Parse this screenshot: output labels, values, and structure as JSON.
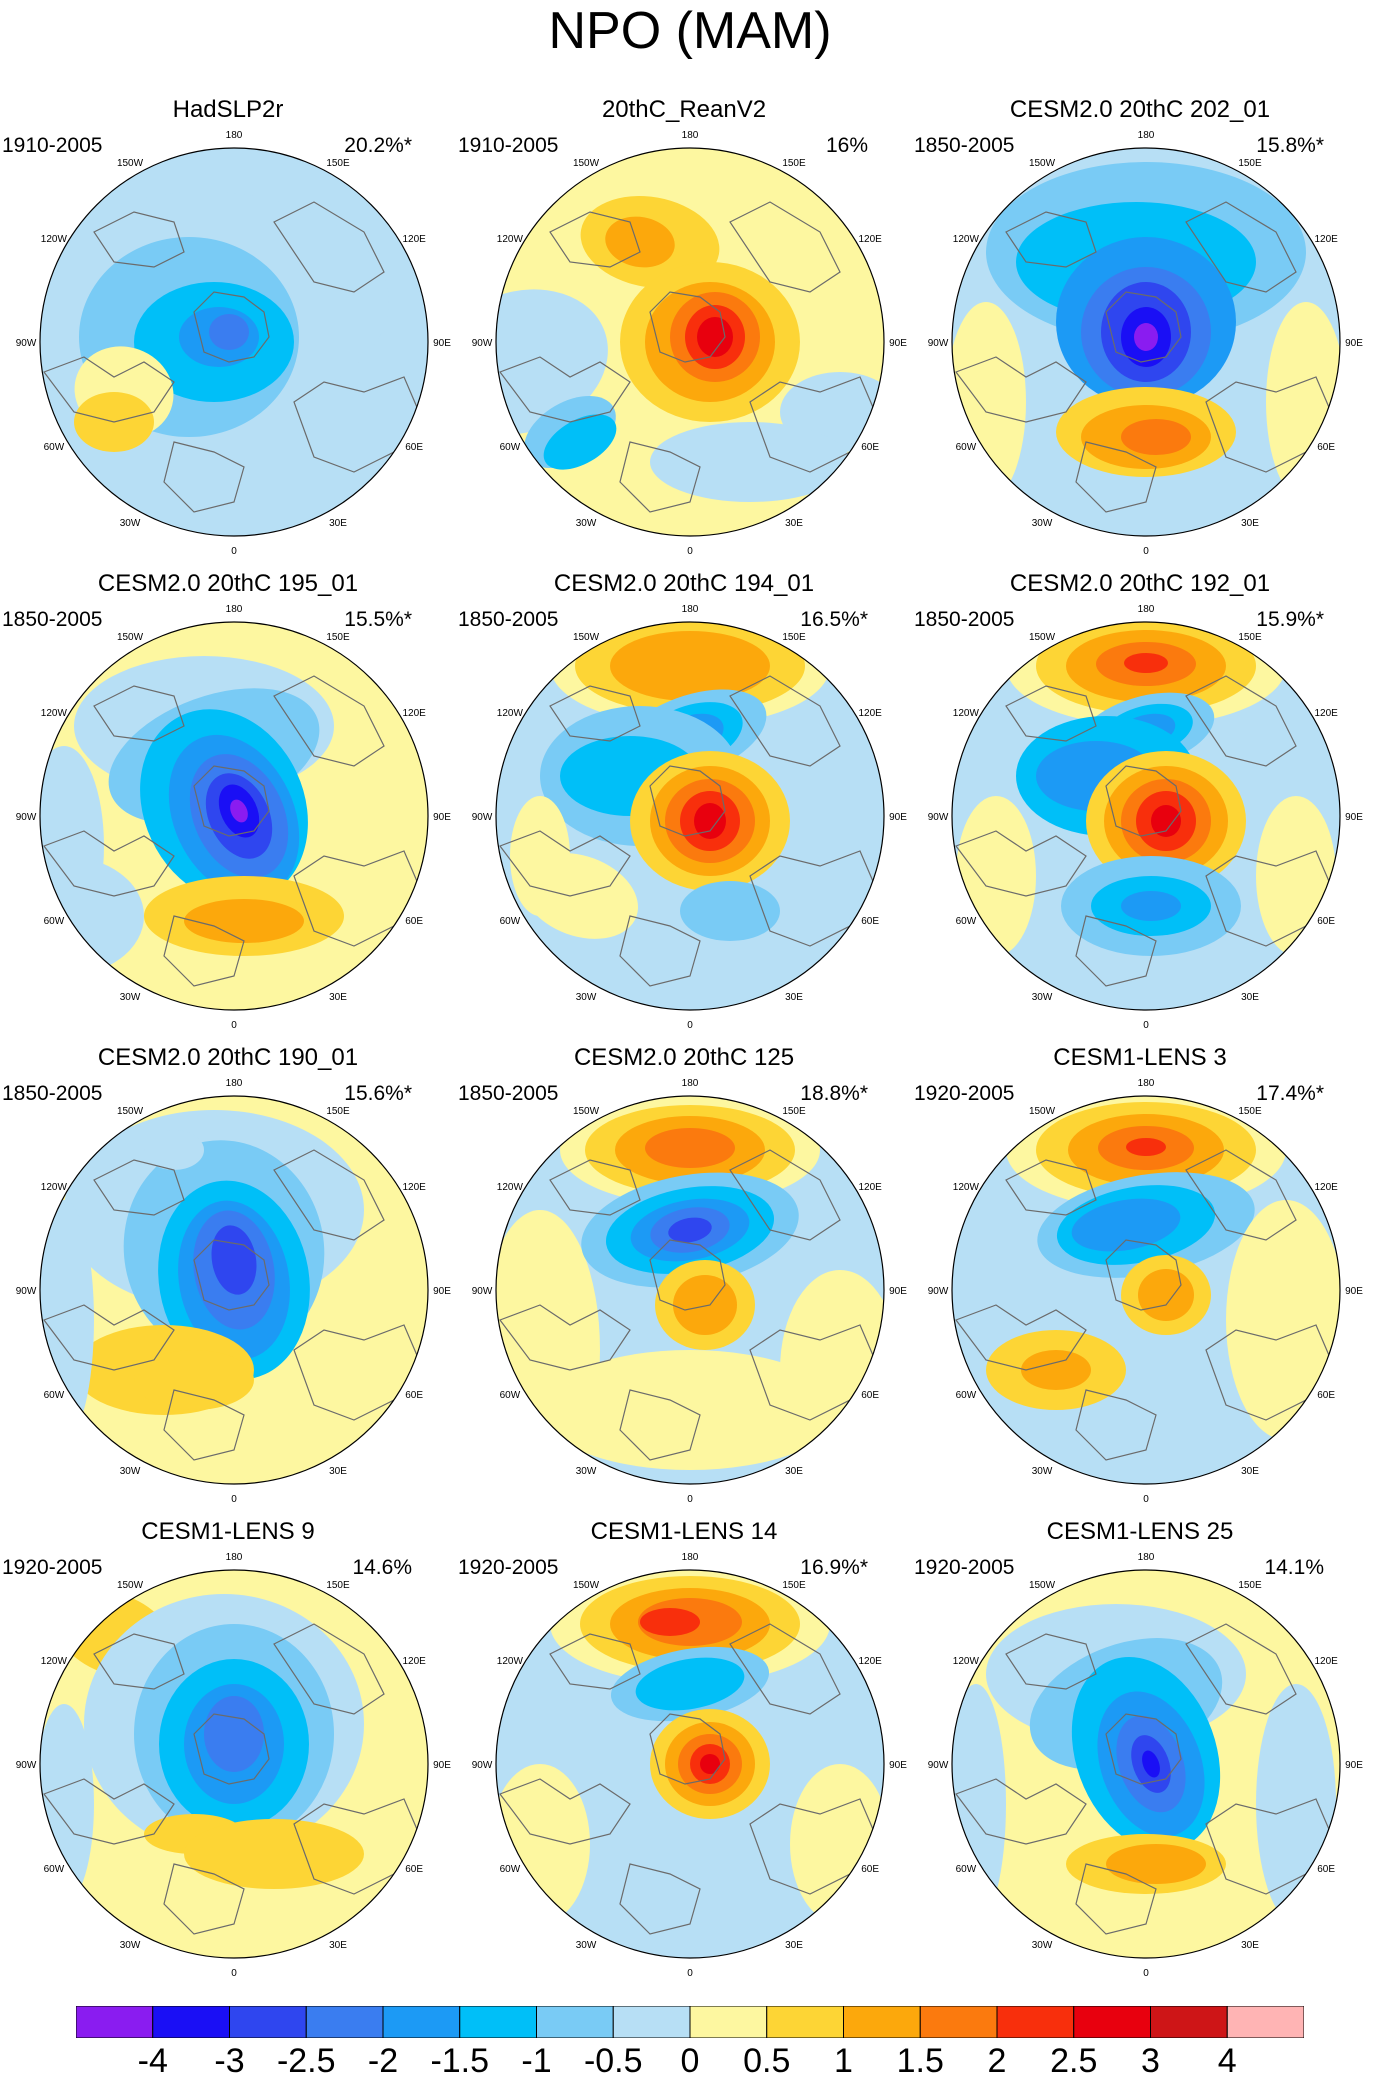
{
  "title": "NPO (MAM)",
  "map_labels": {
    "lon_labels": [
      "180",
      "150E",
      "120E",
      "90E",
      "60E",
      "30E",
      "0",
      "30W",
      "60W",
      "90W",
      "120W",
      "150W"
    ]
  },
  "panels": [
    {
      "title": "HadSLP2r",
      "period": "1910-2005",
      "variance": "20.2%*"
    },
    {
      "title": "20thC_ReanV2",
      "period": "1910-2005",
      "variance": "16%"
    },
    {
      "title": "CESM2.0 20thC 202_01",
      "period": "1850-2005",
      "variance": "15.8%*"
    },
    {
      "title": "CESM2.0 20thC 195_01",
      "period": "1850-2005",
      "variance": "15.5%*"
    },
    {
      "title": "CESM2.0 20thC 194_01",
      "period": "1850-2005",
      "variance": "16.5%*"
    },
    {
      "title": "CESM2.0 20thC 192_01",
      "period": "1850-2005",
      "variance": "15.9%*"
    },
    {
      "title": "CESM2.0 20thC 190_01",
      "period": "1850-2005",
      "variance": "15.6%*"
    },
    {
      "title": "CESM2.0 20thC 125",
      "period": "1850-2005",
      "variance": "18.8%*"
    },
    {
      "title": "CESM1-LENS 3",
      "period": "1920-2005",
      "variance": "17.4%*"
    },
    {
      "title": "CESM1-LENS 9",
      "period": "1920-2005",
      "variance": "14.6%"
    },
    {
      "title": "CESM1-LENS 14",
      "period": "1920-2005",
      "variance": "16.9%*"
    },
    {
      "title": "CESM1-LENS 25",
      "period": "1920-2005",
      "variance": "14.1%"
    }
  ],
  "colorbar": {
    "labels": [
      "-4",
      "-3",
      "-2.5",
      "-2",
      "-1.5",
      "-1",
      "-0.5",
      "0",
      "0.5",
      "1",
      "1.5",
      "2",
      "2.5",
      "3",
      "4"
    ],
    "colors": [
      "#8a1cf0",
      "#1a0ff5",
      "#2f46ef",
      "#3a7df0",
      "#1c9af5",
      "#00bff8",
      "#79cbf5",
      "#b7dff5",
      "#fdf7a0",
      "#fdd535",
      "#fca80c",
      "#fb7a0e",
      "#f82f0c",
      "#e8000e",
      "#ce1517",
      "#ffb4b4"
    ]
  }
}
